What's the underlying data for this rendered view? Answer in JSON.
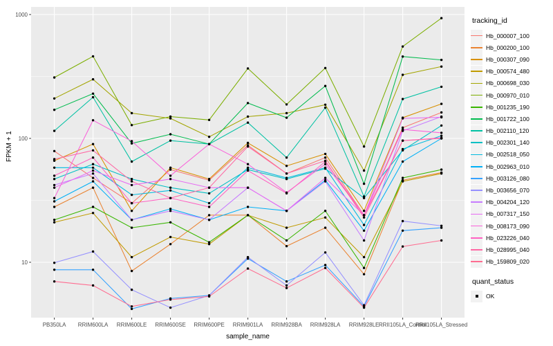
{
  "figure": {
    "panel_bg": "#EBEBEB",
    "grid_color": "#FFFFFF",
    "axis_text_color": "#4D4D4D",
    "tick_mark_color": "#333333",
    "point_color": "#000000",
    "legend_key_bg": "#F2F2F2"
  },
  "chart_data": {
    "type": "line",
    "title": "",
    "xlabel": "sample_name",
    "ylabel": "FPKM + 1",
    "y_scale": "log10",
    "grid": true,
    "legend_position": "right",
    "y_ticks": [
      1000,
      100,
      10
    ],
    "y_tick_labels": [
      "1000",
      "100",
      "10"
    ],
    "y_minor_ticks": [
      316.23,
      31.62
    ],
    "ylim": [
      3.5,
      1150
    ],
    "categories": [
      "PB350LA",
      "RRIM600LA",
      "RRIM600LE",
      "RRIM600SE",
      "RRIM600PE",
      "RRIM901LA",
      "RRIM928BA",
      "RRIM928LA",
      "RRIM928LE",
      "RRII105LA_Control",
      "RRII105LA_Stressed"
    ],
    "legend": {
      "title": "tracking_id"
    },
    "legend2": {
      "title": "quant_status",
      "entries": [
        "OK"
      ]
    },
    "series": [
      {
        "name": "Hb_000007_100",
        "color": "#F8766D",
        "values": [
          79,
          48,
          30,
          56,
          46,
          88,
          52,
          70,
          24,
          122,
          162
        ]
      },
      {
        "name": "Hb_000200_100",
        "color": "#EA8331",
        "values": [
          28,
          40,
          8.5,
          14,
          24,
          24,
          13.5,
          19,
          8,
          46,
          53
        ]
      },
      {
        "name": "Hb_000307_090",
        "color": "#D89000",
        "values": [
          66,
          90,
          26,
          58,
          47,
          92,
          60,
          75,
          26,
          147,
          190
        ]
      },
      {
        "name": "Hb_000574_480",
        "color": "#C09B00",
        "values": [
          21,
          25,
          11,
          16,
          14,
          24,
          19,
          23,
          11,
          45,
          52
        ]
      },
      {
        "name": "Hb_000698_030",
        "color": "#A3A500",
        "values": [
          210,
          300,
          160,
          145,
          103,
          150,
          160,
          187,
          55,
          326,
          380
        ]
      },
      {
        "name": "Hb_000970_010",
        "color": "#7CAE00",
        "values": [
          310,
          460,
          128,
          150,
          141,
          367,
          188,
          370,
          86,
          552,
          935
        ]
      },
      {
        "name": "Hb_001235_190",
        "color": "#39B600",
        "values": [
          22,
          28,
          19,
          21,
          14.5,
          24,
          15,
          26,
          9,
          48,
          56
        ]
      },
      {
        "name": "Hb_001722_100",
        "color": "#00BB4E",
        "values": [
          170,
          230,
          91,
          108,
          90,
          193,
          147,
          265,
          43,
          458,
          430
        ]
      },
      {
        "name": "Hb_002110_120",
        "color": "#00C1A3",
        "values": [
          115,
          215,
          65,
          96,
          90,
          134,
          70,
          177,
          34,
          208,
          261
        ]
      },
      {
        "name": "Hb_002301_140",
        "color": "#00BFC4",
        "values": [
          47,
          62,
          47,
          40,
          36,
          56,
          47,
          57,
          33,
          80,
          127
        ]
      },
      {
        "name": "Hb_002518_050",
        "color": "#00BAE0",
        "values": [
          58,
          58,
          35,
          38,
          30,
          58,
          48,
          58,
          20,
          82,
          105
        ]
      },
      {
        "name": "Hb_002963_010",
        "color": "#00B0F6",
        "values": [
          31,
          45,
          22,
          27,
          22,
          28,
          26,
          46,
          18,
          65,
          100
        ]
      },
      {
        "name": "Hb_003126_080",
        "color": "#35A2FF",
        "values": [
          8.7,
          8.7,
          4.2,
          5.1,
          5.4,
          10.7,
          7,
          9.5,
          4.4,
          18,
          19
        ]
      },
      {
        "name": "Hb_003656_070",
        "color": "#9590FF",
        "values": [
          9.9,
          12.2,
          6,
          4.3,
          5.4,
          11,
          6.5,
          12,
          4.5,
          21.5,
          19.7
        ]
      },
      {
        "name": "Hb_004204_120",
        "color": "#C77CFF",
        "values": [
          42,
          52,
          22,
          26,
          22,
          40,
          26,
          45,
          15,
          115,
          150
        ]
      },
      {
        "name": "Hb_007317_150",
        "color": "#E76BF3",
        "values": [
          40,
          55,
          42,
          47,
          40,
          40,
          26,
          48,
          24,
          145,
          148
        ]
      },
      {
        "name": "Hb_008173_090",
        "color": "#FA62DB",
        "values": [
          33,
          140,
          95,
          50,
          90,
          62,
          36.5,
          62,
          24,
          118,
          111
        ]
      },
      {
        "name": "Hb_023226_040",
        "color": "#FF61C2",
        "values": [
          50,
          70,
          30,
          33,
          28,
          55,
          36,
          65,
          24,
          96,
          101
        ]
      },
      {
        "name": "Hb_028995_040",
        "color": "#FF67A4",
        "values": [
          68,
          80,
          45,
          33,
          40,
          86,
          52,
          66,
          23,
          96,
          100
        ]
      },
      {
        "name": "Hb_159809_020",
        "color": "#FF6C90",
        "values": [
          7,
          6.5,
          4.4,
          5,
          5.3,
          8.9,
          6.2,
          9,
          4.3,
          13.4,
          15
        ]
      }
    ]
  }
}
